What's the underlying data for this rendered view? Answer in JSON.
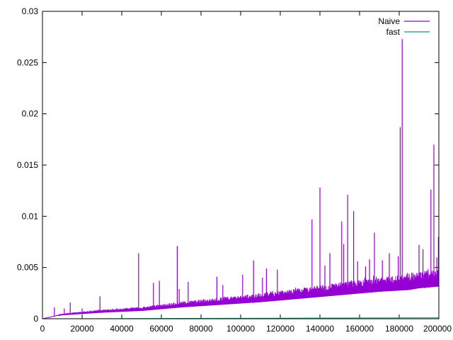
{
  "chart_data": {
    "type": "line",
    "title": "",
    "xlabel": "",
    "ylabel": "",
    "xlim": [
      0,
      200000
    ],
    "ylim": [
      0,
      0.03
    ],
    "x_ticks": [
      0,
      20000,
      40000,
      60000,
      80000,
      100000,
      120000,
      140000,
      160000,
      180000,
      200000
    ],
    "x_tick_labels": [
      "0",
      "20000",
      "40000",
      "60000",
      "80000",
      "100000",
      "120000",
      "140000",
      "160000",
      "180000",
      "200000"
    ],
    "y_ticks": [
      0,
      0.005,
      0.01,
      0.015,
      0.02,
      0.025,
      0.03
    ],
    "y_tick_labels": [
      "0",
      "0.005",
      "0.01",
      "0.015",
      "0.02",
      "0.025",
      "0.03"
    ],
    "grid": false,
    "legend": "top-right",
    "series": [
      {
        "name": "Naive",
        "color": "#9400d3",
        "base_trend": {
          "x": [
            0,
            10000,
            30000,
            50000,
            70000,
            90000,
            110000,
            130000,
            150000,
            170000,
            185000,
            190000,
            200000
          ],
          "y": [
            0.0,
            0.0004,
            0.0007,
            0.0009,
            0.0013,
            0.0016,
            0.0019,
            0.0023,
            0.0027,
            0.0031,
            0.0033,
            0.0035,
            0.0037
          ]
        },
        "spikes": {
          "x": [
            6000,
            11000,
            14000,
            20000,
            29000,
            48500,
            56000,
            59000,
            68000,
            69000,
            73500,
            88000,
            91000,
            101000,
            106500,
            111000,
            113000,
            118500,
            136000,
            140000,
            142500,
            145000,
            151000,
            152000,
            154000,
            157000,
            159000,
            163000,
            165000,
            167500,
            171500,
            175000,
            179500,
            180500,
            181500,
            190000,
            192000,
            196000,
            197500,
            199000,
            199800
          ],
          "y": [
            0.0011,
            0.001,
            0.0016,
            0.001,
            0.0022,
            0.0064,
            0.0035,
            0.0037,
            0.0071,
            0.0029,
            0.0036,
            0.0041,
            0.0033,
            0.0043,
            0.0057,
            0.004,
            0.0049,
            0.0048,
            0.0097,
            0.0128,
            0.0052,
            0.0064,
            0.0095,
            0.0073,
            0.0121,
            0.0105,
            0.0056,
            0.0051,
            0.0058,
            0.0084,
            0.0057,
            0.0064,
            0.0061,
            0.0187,
            0.0273,
            0.0072,
            0.0068,
            0.0126,
            0.017,
            0.006,
            0.008
          ]
        }
      },
      {
        "name": "fast",
        "color": "#009e73",
        "base_trend": {
          "x": [
            0,
            200000
          ],
          "y": [
            0.0,
            0.0001
          ]
        },
        "spikes": {
          "x": [],
          "y": []
        }
      }
    ]
  }
}
